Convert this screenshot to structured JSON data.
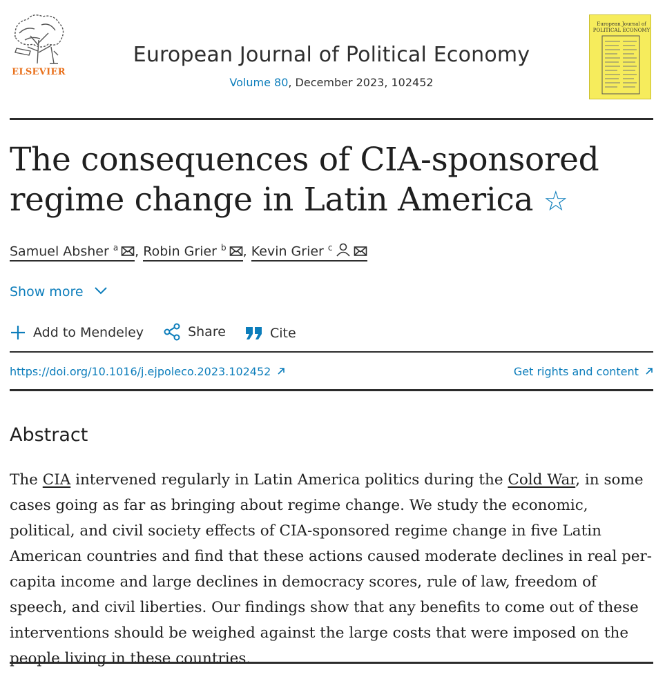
{
  "publisher": {
    "name": "ELSEVIER"
  },
  "journal": {
    "name": "European Journal of Political Economy",
    "volume_link": "Volume 80",
    "issue_rest": ", December 2023, 102452"
  },
  "article": {
    "title": "The consequences of CIA-sponsored regime change in Latin America",
    "authors": [
      {
        "name": "Samuel Absher",
        "sup": "a"
      },
      {
        "name": "Robin Grier",
        "sup": "b"
      },
      {
        "name": "Kevin Grier",
        "sup": "c"
      }
    ],
    "show_more": "Show more",
    "actions": {
      "mendeley": "Add to Mendeley",
      "share": "Share",
      "cite": "Cite"
    },
    "doi": "https://doi.org/10.1016/j.ejpoleco.2023.102452",
    "rights": "Get rights and content"
  },
  "abstract": {
    "heading": "Abstract",
    "t1": "The ",
    "link1": "CIA",
    "t2": " intervened regularly in Latin America politics during the ",
    "link2": "Cold War",
    "t3": ", in some cases going as far as bringing about regime change. We study the economic, political, and civil society effects of CIA-sponsored regime change in five Latin American countries and find that these actions caused moderate declines in real per-capita income and large declines in democracy scores, rule of law, freedom of speech, and civil liberties. Our findings show that any benefits to come out of these interventions should be weighed against the large costs that were imposed on the people living in these countries."
  },
  "colors": {
    "link": "#0c7dbb",
    "brand": "#e9711c",
    "cover": "#f6ec5c"
  }
}
